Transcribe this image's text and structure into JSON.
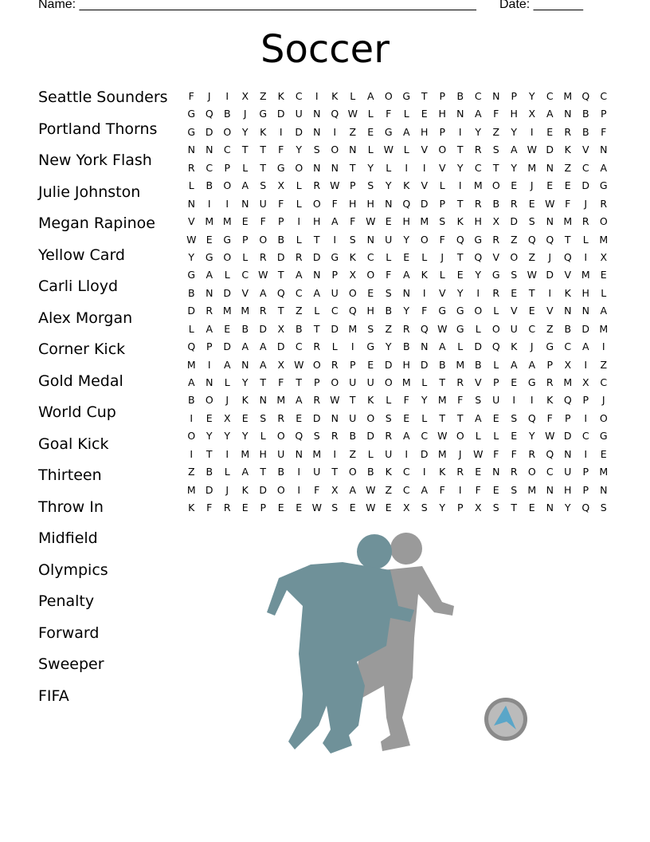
{
  "header": {
    "name_label": "Name: ________________________________________________________",
    "date_label": "Date: _______"
  },
  "title": "Soccer",
  "words": [
    "Seattle Sounders",
    "Portland Thorns",
    "New York Flash",
    "Julie Johnston",
    "Megan Rapinoe",
    "Yellow Card",
    "Carli Lloyd",
    "Alex Morgan",
    "Corner Kick",
    "Gold Medal",
    "World Cup",
    "Goal Kick",
    "Thirteen",
    "Throw In",
    "Midfield",
    "Olympics",
    "Penalty",
    "Forward",
    "Sweeper",
    "FIFA"
  ],
  "grid": [
    "FJIXZKCIKLAOGTPBCNPYCMQC",
    "GQBJGDUNQWLFLEHNAFHXANBP",
    "GDOYKIDNIZEGAHPIYZYIERBF",
    "NNCTTFYSONLWLVOTRSAWDKVN",
    "RCPLTGONNTYLIIVYCTYMNZCA",
    "LBOASXLRWPSYKVLIMOEJEEDG",
    "NIINUFLOFHHNQDPTRBREWFJR",
    "VMMEFPIHAFWEHMSKHXDSNMRO",
    "WEGPOBLTISNUYOFQGRZQQTLM",
    "YGOLRDRDGKCLELJTQVOZJQIX",
    "GALCWTANPXOFAKLEYGSWDVME",
    "BNDVAQCAUOESNIVYIRETIKHL",
    "DRMMRTZLCQHBYFGGOLVEVNNA",
    "LAEBDXBTDMSZRQWGLOUCZBDM",
    "QPDAADCRLIGYBNALDQKJGCAI",
    "MIANAXWORPEDHDBMBLAAPXIZ",
    "ANLYTFTPOUUOMLTRVPEGRMXC",
    "BOJKNMARWTKLFYMFSUIIKQPJ",
    "IEXESREDNUOSELTTAESQFPIO",
    "OYYYLOQSRBDRACWOLLEYWDCG",
    "ITIMHUNMIZLUIDMJWFFRQNIE",
    "ZBLATBIUTOBKCIKRENROCUPM",
    "MDJKDOIFXAWZCAFIFESMNHPN",
    "KFREPEEWSEWEXSYPXSTENYQS"
  ],
  "illustration": {
    "icon": "soccer-players-silhouette",
    "colors": {
      "player_front": "#6f9199",
      "player_back": "#9a9a9a",
      "ball": "#8a8a8a"
    }
  }
}
